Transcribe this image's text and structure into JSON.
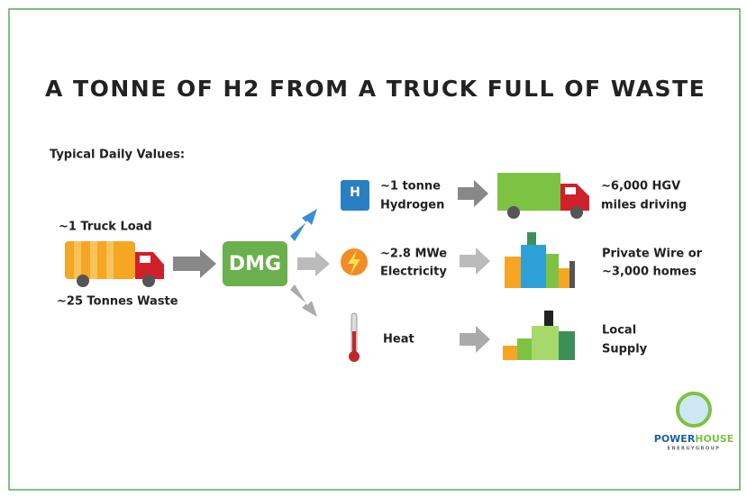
{
  "title": "A TONNE OF H2 FROM A TRUCK FULL OF WASTE",
  "subtitle": "Typical Daily Values:",
  "input": {
    "top": "~1 Truck Load",
    "bottom": "~25 Tonnes Waste"
  },
  "process": "DMG",
  "outputs": [
    {
      "icon": "H",
      "product": [
        "~1 tonne",
        "Hydrogen"
      ],
      "use": [
        "~6,000 HGV",
        "miles driving"
      ]
    },
    {
      "product": [
        "~2.8 MWe",
        "Electricity"
      ],
      "use": [
        "Private Wire or",
        "~3,000 homes"
      ]
    },
    {
      "product": [
        "Heat"
      ],
      "use": [
        "Local",
        "Supply"
      ]
    }
  ],
  "logo": {
    "name_a": "POWER",
    "name_b": "HOUSE",
    "tagline": "ENERGYGROUP"
  }
}
